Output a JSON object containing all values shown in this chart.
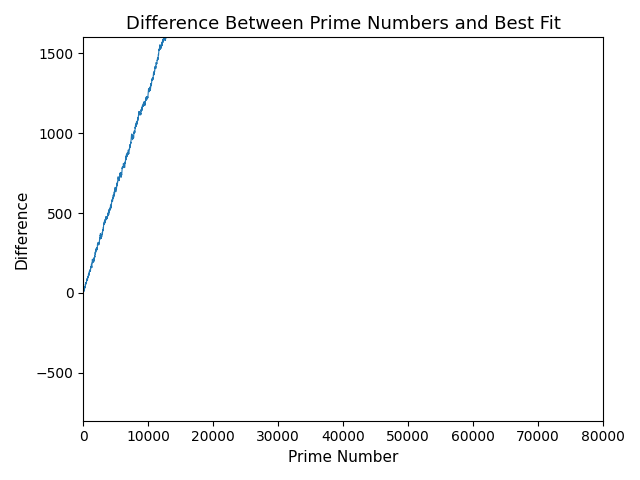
{
  "title": "Difference Between Prime Numbers and Best Fit",
  "xlabel": "Prime Number",
  "ylabel": "Difference",
  "line_color": "#1f77b4",
  "line_width": 0.8,
  "figsize": [
    6.4,
    4.8
  ],
  "dpi": 100,
  "xlim": [
    0,
    80000
  ],
  "ylim": [
    -800,
    1600
  ],
  "xticks": [
    0,
    10000,
    20000,
    30000,
    40000,
    50000,
    60000,
    70000,
    80000
  ]
}
